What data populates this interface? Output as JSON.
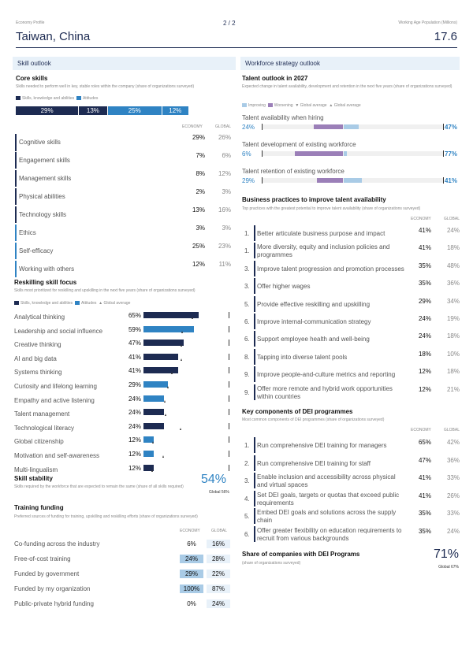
{
  "header": {
    "profile_label": "Economy Profile",
    "page": "2 / 2",
    "economy": "Taiwan, China",
    "metric_label": "Working Age Population (Millions)",
    "metric_value": "17.6"
  },
  "skill_outlook": {
    "section_title": "Skill outlook",
    "core": {
      "title": "Core skills",
      "subtitle": "Skills needed to perform well in key, stable roles within the company (share of organizations surveyed)",
      "legend": [
        "Skills, knowledge and abilities",
        "Attitudes"
      ],
      "bar_segments": [
        "29%",
        "13%",
        "25%",
        "12%"
      ],
      "col_economy": "ECONOMY",
      "col_global": "GLOBAL",
      "rows": [
        {
          "label": "Cognitive skills",
          "economy": "29%",
          "global": "26%"
        },
        {
          "label": "Engagement skills",
          "economy": "7%",
          "global": "6%"
        },
        {
          "label": "Management skills",
          "economy": "8%",
          "global": "12%"
        },
        {
          "label": "Physical abilities",
          "economy": "2%",
          "global": "3%"
        },
        {
          "label": "Technology skills",
          "economy": "13%",
          "global": "16%"
        },
        {
          "label": "Ethics",
          "economy": "3%",
          "global": "3%"
        },
        {
          "label": "Self-efficacy",
          "economy": "25%",
          "global": "23%"
        },
        {
          "label": "Working with others",
          "economy": "12%",
          "global": "11%"
        }
      ]
    },
    "reskilling": {
      "title": "Reskilling skill focus",
      "subtitle": "Skills most prioritized for reskilling and upskilling in the next five years (share of organizations surveyed)",
      "legend": [
        "Skills, knowledge and abilities",
        "Attitudes",
        "Global average"
      ],
      "rows": [
        {
          "label": "Analytical thinking",
          "value": "65%",
          "pct": 65,
          "global": 58,
          "type": "skill"
        },
        {
          "label": "Leadership and social influence",
          "value": "59%",
          "pct": 59,
          "global": 46,
          "type": "attitude"
        },
        {
          "label": "Creative thinking",
          "value": "47%",
          "pct": 47,
          "global": 45,
          "type": "skill"
        },
        {
          "label": "AI and big data",
          "value": "41%",
          "pct": 41,
          "global": 45,
          "type": "skill"
        },
        {
          "label": "Systems thinking",
          "value": "41%",
          "pct": 41,
          "global": 34,
          "type": "skill"
        },
        {
          "label": "Curiosity and lifelong learning",
          "value": "29%",
          "pct": 29,
          "global": 29,
          "type": "attitude"
        },
        {
          "label": "Empathy and active listening",
          "value": "24%",
          "pct": 24,
          "global": 25,
          "type": "attitude"
        },
        {
          "label": "Talent management",
          "value": "24%",
          "pct": 24,
          "global": 26,
          "type": "skill"
        },
        {
          "label": "Technological literacy",
          "value": "24%",
          "pct": 24,
          "global": 44,
          "type": "skill"
        },
        {
          "label": "Global citizenship",
          "value": "12%",
          "pct": 12,
          "global": 12,
          "type": "attitude"
        },
        {
          "label": "Motivation and self-awareness",
          "value": "12%",
          "pct": 12,
          "global": 24,
          "type": "attitude"
        },
        {
          "label": "Multi-lingualism",
          "value": "12%",
          "pct": 12,
          "global": 11,
          "type": "skill"
        }
      ]
    },
    "stability": {
      "title": "Skill stability",
      "subtitle": "Skills required by the workforce that are expected to remain the same (share of all skills required)",
      "value": "54%",
      "global": "Global 56%"
    },
    "funding": {
      "title": "Training funding",
      "subtitle": "Preferred sources of funding for training, upskilling and reskilling efforts (share of organizations surveyed)",
      "col_economy": "ECONOMY",
      "col_global": "GLOBAL",
      "rows": [
        {
          "label": "Co-funding across the industry",
          "economy": "6%",
          "global": "16%"
        },
        {
          "label": "Free-of-cost training",
          "economy": "24%",
          "global": "28%"
        },
        {
          "label": "Funded by government",
          "economy": "29%",
          "global": "22%"
        },
        {
          "label": "Funded by my organization",
          "economy": "100%",
          "global": "87%"
        },
        {
          "label": "Public-private hybrid funding",
          "economy": "0%",
          "global": "24%"
        }
      ]
    }
  },
  "workforce": {
    "section_title": "Workforce strategy outlook",
    "talent": {
      "title": "Talent outlook in 2027",
      "subtitle": "Expected change in talent availability, development and retention in the next five years (share of organizations surveyed)",
      "legend": [
        "Improving",
        "Worsening",
        "Global average",
        "Global average"
      ],
      "rows": [
        {
          "label": "Talent availability when hiring",
          "improving": "24%",
          "worsening": "47%",
          "imp": 24,
          "wor": 47
        },
        {
          "label": "Talent development of existing workforce",
          "improving": "6%",
          "worsening": "77%",
          "imp": 6,
          "wor": 77
        },
        {
          "label": "Talent retention of existing workforce",
          "improving": "29%",
          "worsening": "41%",
          "imp": 29,
          "wor": 41
        }
      ]
    },
    "practices": {
      "title": "Business practices to improve talent availability",
      "subtitle": "Top practices with the greatest potential to improve talent availability (share of organizations surveyed)",
      "col_economy": "ECONOMY",
      "col_global": "GLOBAL",
      "rows": [
        {
          "rank": "1.",
          "label": "Better articulate business purpose and impact",
          "economy": "41%",
          "global": "24%"
        },
        {
          "rank": "1.",
          "label": "More diversity, equity and inclusion policies and programmes",
          "economy": "41%",
          "global": "18%"
        },
        {
          "rank": "3.",
          "label": "Improve talent progression and promotion processes",
          "economy": "35%",
          "global": "48%"
        },
        {
          "rank": "3.",
          "label": "Offer higher wages",
          "economy": "35%",
          "global": "36%"
        },
        {
          "rank": "5.",
          "label": "Provide effective reskilling and upskilling",
          "economy": "29%",
          "global": "34%"
        },
        {
          "rank": "6.",
          "label": "Improve internal-communication strategy",
          "economy": "24%",
          "global": "19%"
        },
        {
          "rank": "6.",
          "label": "Support employee health and well-being",
          "economy": "24%",
          "global": "18%"
        },
        {
          "rank": "8.",
          "label": "Tapping into diverse talent pools",
          "economy": "18%",
          "global": "10%"
        },
        {
          "rank": "9.",
          "label": "Improve people-and-culture metrics and reporting",
          "economy": "12%",
          "global": "18%"
        },
        {
          "rank": "9.",
          "label": "Offer more remote and hybrid work opportunities within countries",
          "economy": "12%",
          "global": "21%"
        }
      ]
    },
    "dei": {
      "title": "Key components of DEI programmes",
      "subtitle": "Most common components of DEI programmes (share of organizations surveyed)",
      "col_economy": "ECONOMY",
      "col_global": "GLOBAL",
      "rows": [
        {
          "rank": "1.",
          "label": "Run comprehensive DEI training for managers",
          "economy": "65%",
          "global": "42%"
        },
        {
          "rank": "2.",
          "label": "Run comprehensive DEI training for staff",
          "economy": "47%",
          "global": "36%"
        },
        {
          "rank": "3.",
          "label": "Enable inclusion and accessibility across physical and virtual spaces",
          "economy": "41%",
          "global": "33%"
        },
        {
          "rank": "4.",
          "label": "Set DEI goals, targets or quotas that exceed public requirements",
          "economy": "41%",
          "global": "26%"
        },
        {
          "rank": "5.",
          "label": "Embed DEI goals and solutions across the supply chain",
          "economy": "35%",
          "global": "33%"
        },
        {
          "rank": "6.",
          "label": "Offer greater flexibility on education requirements to recruit from various backgrounds",
          "economy": "35%",
          "global": "24%"
        }
      ]
    },
    "share": {
      "title": "Share of companies with DEI Programs",
      "subtitle": "(share of organizations surveyed)",
      "value": "71%",
      "global": "Global 67%"
    }
  }
}
